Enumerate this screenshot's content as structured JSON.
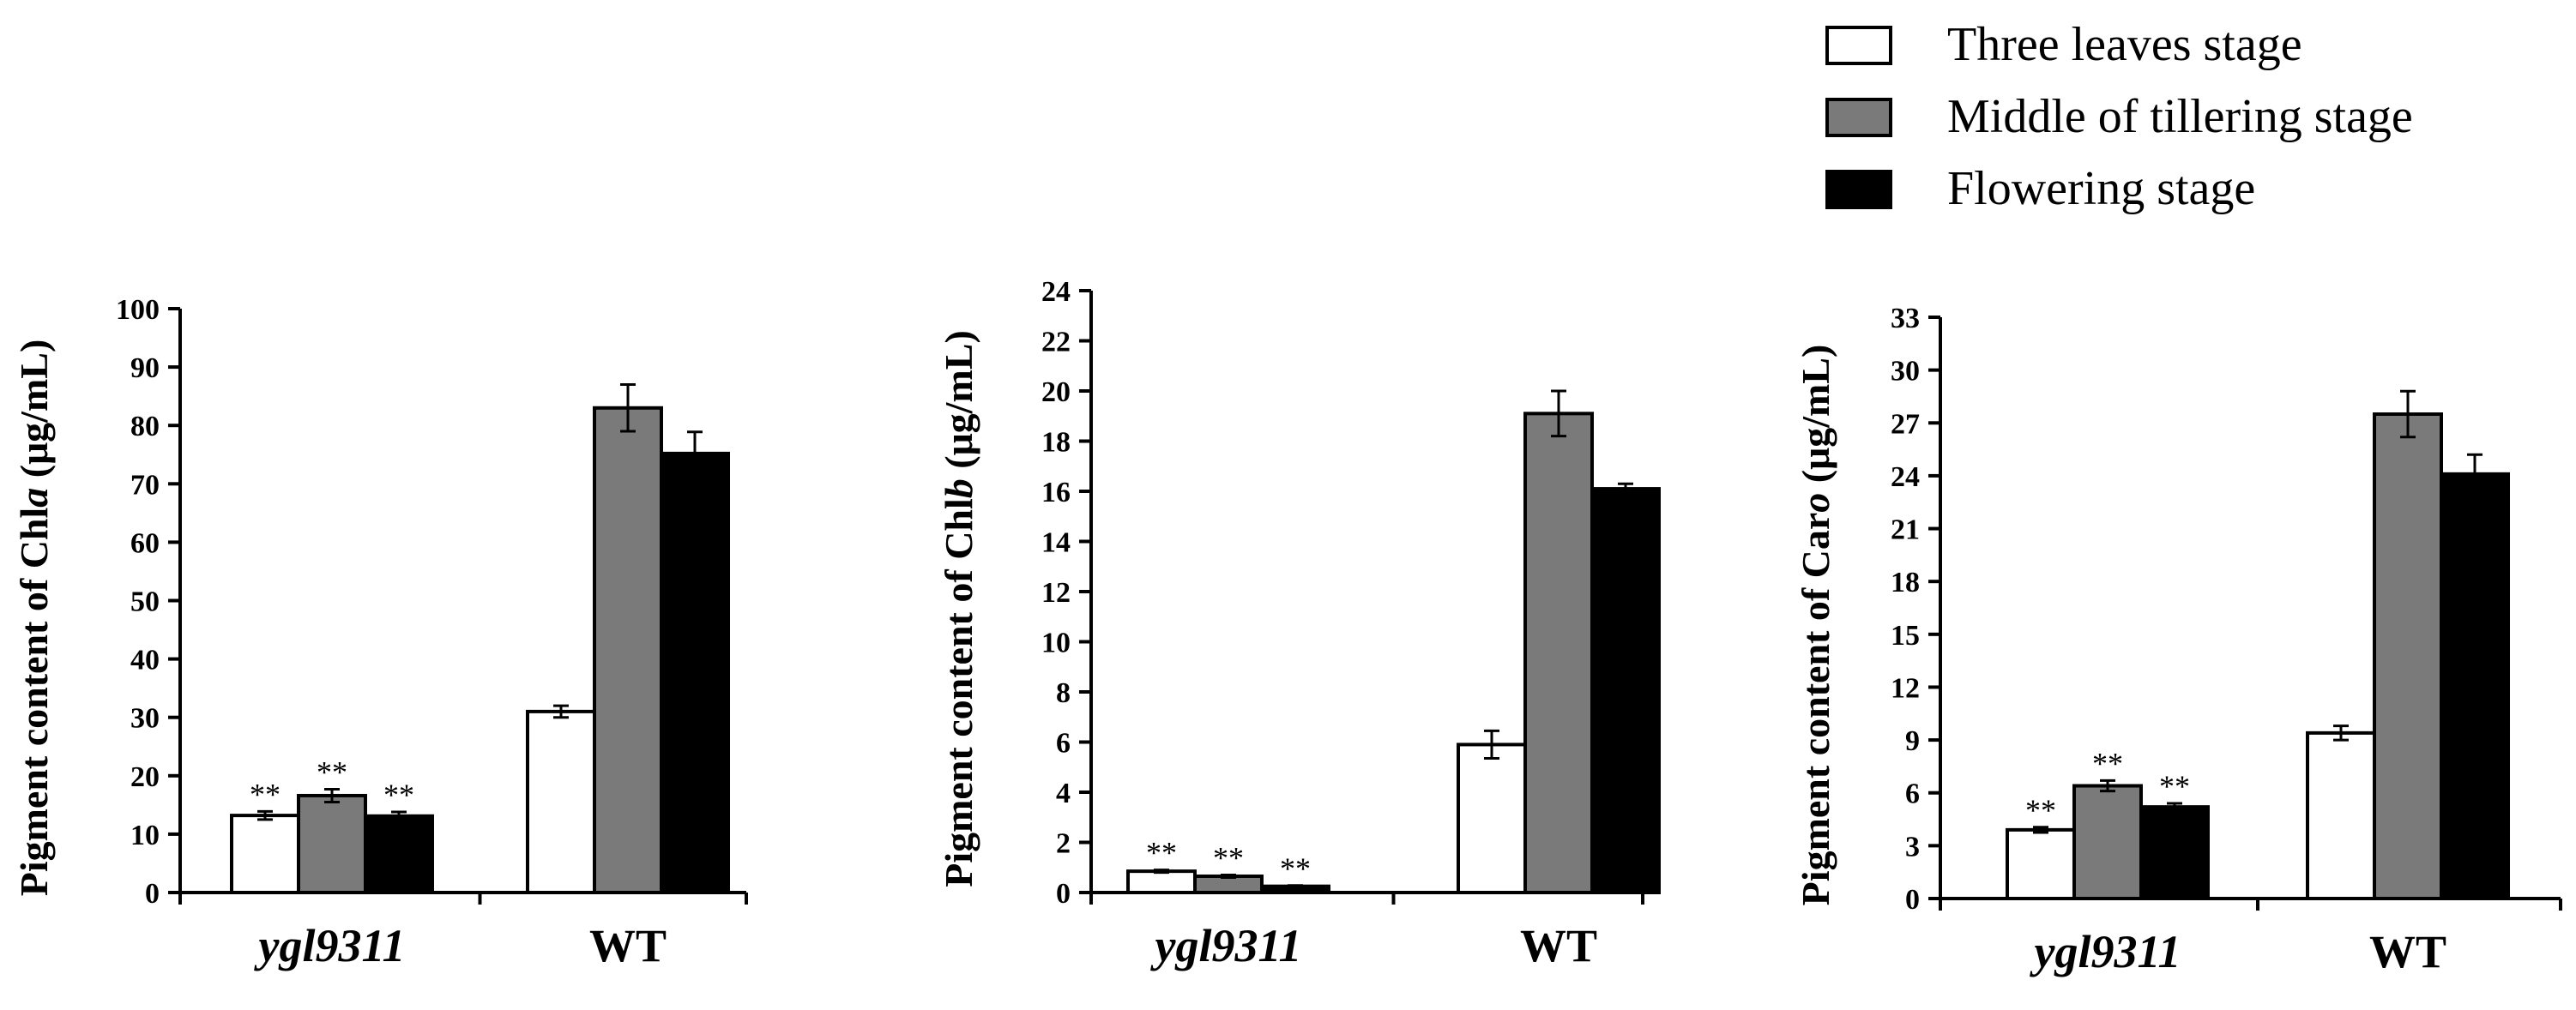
{
  "legend": [
    {
      "label": "Three leaves stage",
      "color": "#ffffff"
    },
    {
      "label": "Middle of tillering stage",
      "color": "#7a7a7a"
    },
    {
      "label": "Flowering stage",
      "color": "#000000"
    }
  ],
  "significance_mark": "**",
  "chart_data": [
    {
      "type": "bar",
      "ylabel_prefix": "Pigment content of Chl",
      "ylabel_italic": "a",
      "ylabel_suffix": " (μg/mL)",
      "categories": [
        "ygl9311",
        "WT"
      ],
      "category_italic": [
        true,
        false
      ],
      "ylim": [
        0,
        100
      ],
      "yticks": [
        0,
        10,
        20,
        30,
        40,
        50,
        60,
        70,
        80,
        90,
        100
      ],
      "series": [
        {
          "name": "Three leaves stage",
          "values": [
            13.2,
            31.0
          ],
          "errors": [
            0.7,
            1.0
          ]
        },
        {
          "name": "Middle of tillering stage",
          "values": [
            16.6,
            83.0
          ],
          "errors": [
            1.1,
            4.0
          ]
        },
        {
          "name": "Flowering stage",
          "values": [
            13.1,
            75.2
          ],
          "errors": [
            0.7,
            3.7
          ]
        }
      ],
      "annotations": [
        {
          "category": "ygl9311",
          "series": 0,
          "text": "**"
        },
        {
          "category": "ygl9311",
          "series": 1,
          "text": "**"
        },
        {
          "category": "ygl9311",
          "series": 2,
          "text": "**"
        }
      ]
    },
    {
      "type": "bar",
      "ylabel_prefix": "Pigment content of Chl",
      "ylabel_italic": "b",
      "ylabel_suffix": " (μg/mL)",
      "categories": [
        "ygl9311",
        "WT"
      ],
      "category_italic": [
        true,
        false
      ],
      "ylim": [
        0,
        24
      ],
      "yticks": [
        0,
        2,
        4,
        6,
        8,
        10,
        12,
        14,
        16,
        18,
        20,
        22,
        24
      ],
      "series": [
        {
          "name": "Three leaves stage",
          "values": [
            0.85,
            5.9
          ],
          "errors": [
            0.05,
            0.55
          ]
        },
        {
          "name": "Middle of tillering stage",
          "values": [
            0.65,
            19.1
          ],
          "errors": [
            0.05,
            0.9
          ]
        },
        {
          "name": "Flowering stage",
          "values": [
            0.25,
            16.1
          ],
          "errors": [
            0.03,
            0.2
          ]
        }
      ],
      "annotations": [
        {
          "category": "ygl9311",
          "series": 0,
          "text": "**"
        },
        {
          "category": "ygl9311",
          "series": 1,
          "text": "**"
        },
        {
          "category": "ygl9311",
          "series": 2,
          "text": "**"
        }
      ]
    },
    {
      "type": "bar",
      "ylabel_prefix": "Pigment content of Car",
      "ylabel_italic": "o",
      "ylabel_suffix": " (μg/mL)",
      "categories": [
        "ygl9311",
        "WT"
      ],
      "category_italic": [
        true,
        false
      ],
      "ylim": [
        0,
        33
      ],
      "yticks": [
        0,
        3,
        6,
        9,
        12,
        15,
        18,
        21,
        24,
        27,
        30,
        33
      ],
      "series": [
        {
          "name": "Three leaves stage",
          "values": [
            3.9,
            9.4
          ],
          "errors": [
            0.15,
            0.4
          ]
        },
        {
          "name": "Middle of tillering stage",
          "values": [
            6.4,
            27.5
          ],
          "errors": [
            0.3,
            1.3
          ]
        },
        {
          "name": "Flowering stage",
          "values": [
            5.2,
            24.1
          ],
          "errors": [
            0.2,
            1.1
          ]
        }
      ],
      "annotations": [
        {
          "category": "ygl9311",
          "series": 0,
          "text": "**"
        },
        {
          "category": "ygl9311",
          "series": 1,
          "text": "**"
        },
        {
          "category": "ygl9311",
          "series": 2,
          "text": "**"
        }
      ]
    }
  ]
}
